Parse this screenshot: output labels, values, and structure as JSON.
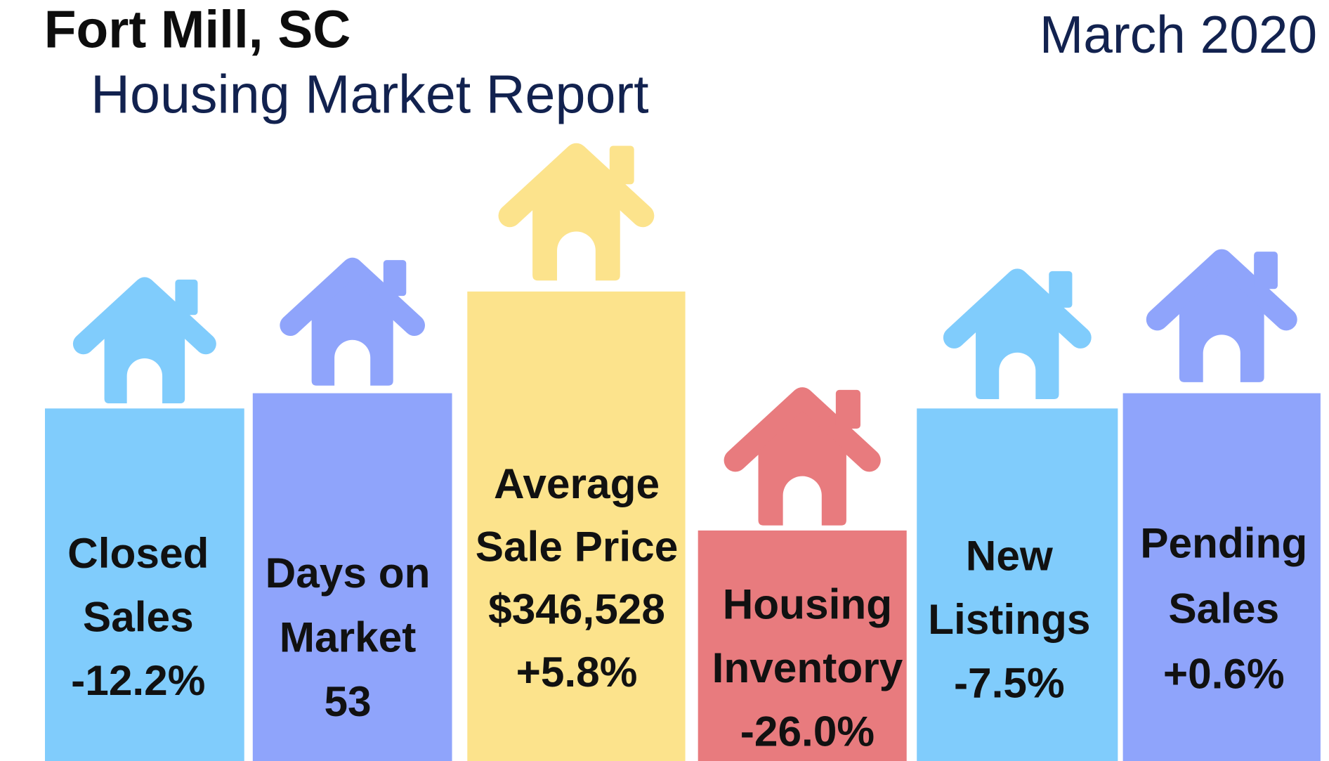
{
  "header": {
    "title": "Fort Mill, SC",
    "subtitle": "Housing Market Report",
    "date": "March 2020"
  },
  "panels": [
    {
      "label": [
        "Closed",
        "Sales"
      ],
      "value": "-12.2%"
    },
    {
      "label": [
        "Days on",
        "Market"
      ],
      "value": "53"
    },
    {
      "label": [
        "Average",
        "Sale Price",
        "$346,528"
      ],
      "value": "+5.8%"
    },
    {
      "label": [
        "Housing",
        "Inventory"
      ],
      "value": "-26.0%"
    },
    {
      "label": [
        "New",
        "Listings"
      ],
      "value": "-7.5%"
    },
    {
      "label": [
        "Pending",
        "Sales"
      ],
      "value": "+0.6%"
    }
  ]
}
